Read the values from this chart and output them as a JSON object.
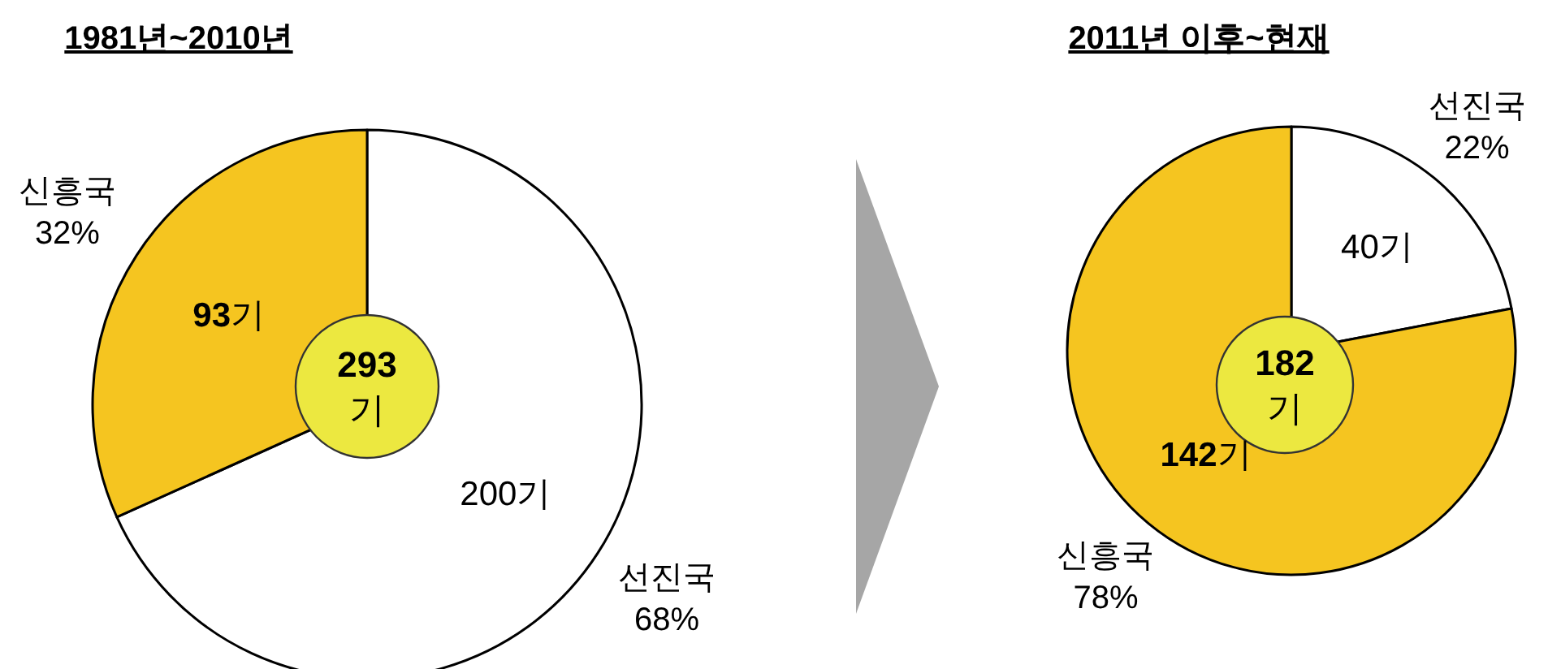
{
  "chart_data": [
    {
      "type": "pie",
      "title": "1981년~2010년",
      "categories": [
        "선진국",
        "신흥국"
      ],
      "values": [
        200,
        93
      ],
      "colors": [
        "#ffffff",
        "#f5c520"
      ],
      "value_labels": [
        "200기",
        "**93**기"
      ],
      "annotations": [
        "**293** 기",
        {
          "text": "68%",
          "x": "선진국"
        },
        {
          "text": "32%",
          "x": "신흥국"
        }
      ]
    },
    {
      "type": "pie",
      "title": "2011년 이후~현재",
      "categories": [
        "선진국",
        "신흥국"
      ],
      "values": [
        40,
        142
      ],
      "colors": [
        "#ffffff",
        "#f5c520"
      ],
      "value_labels": [
        "40기",
        "**142**기"
      ],
      "annotations": [
        "**182** 기",
        {
          "text": "22%",
          "x": "선진국"
        },
        {
          "text": "78%",
          "x": "신흥국"
        }
      ]
    }
  ]
}
